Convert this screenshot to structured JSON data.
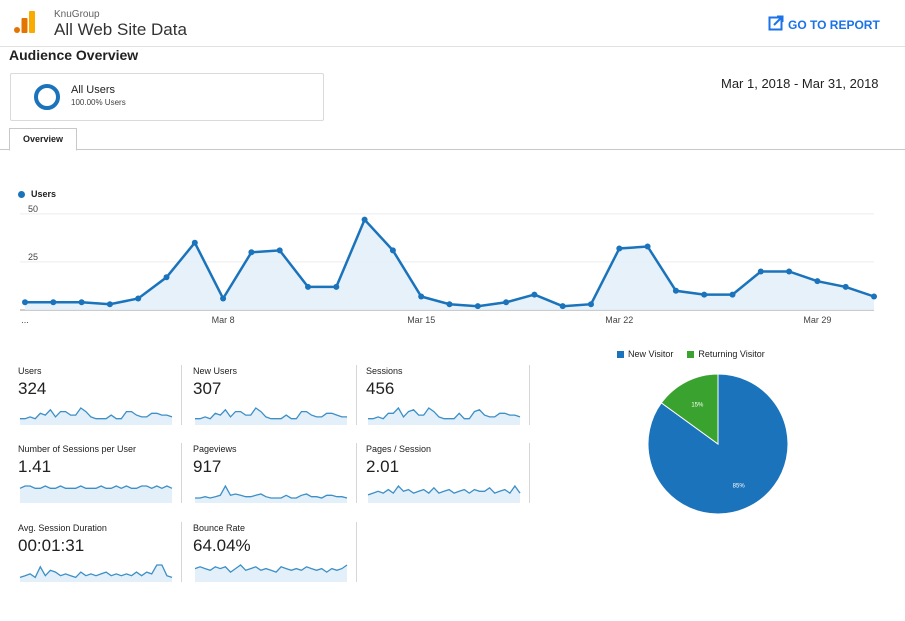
{
  "header": {
    "org": "KnuGroup",
    "property": "All Web Site Data",
    "report_link": "GO TO REPORT"
  },
  "page_title": "Audience Overview",
  "segment": {
    "name": "All Users",
    "percent": "100.00% Users"
  },
  "date_range": "Mar 1, 2018 - Mar 31, 2018",
  "tabs": [
    {
      "label": "Overview"
    }
  ],
  "colors": {
    "accent": "#1a73bb",
    "green": "#3aa32f",
    "link": "#1a73e8"
  },
  "chart_data": [
    {
      "type": "line",
      "legend": [
        "Users"
      ],
      "series": [
        {
          "name": "Users",
          "x": [
            "Mar 1",
            "Mar 2",
            "Mar 3",
            "Mar 4",
            "Mar 5",
            "Mar 6",
            "Mar 7",
            "Mar 8",
            "Mar 9",
            "Mar 10",
            "Mar 11",
            "Mar 12",
            "Mar 13",
            "Mar 14",
            "Mar 15",
            "Mar 16",
            "Mar 17",
            "Mar 18",
            "Mar 19",
            "Mar 20",
            "Mar 21",
            "Mar 22",
            "Mar 23",
            "Mar 24",
            "Mar 25",
            "Mar 26",
            "Mar 27",
            "Mar 28",
            "Mar 29",
            "Mar 30",
            "Mar 31"
          ],
          "values": [
            4,
            4,
            4,
            3,
            6,
            17,
            35,
            6,
            30,
            31,
            12,
            12,
            47,
            31,
            7,
            3,
            2,
            4,
            8,
            2,
            3,
            32,
            33,
            10,
            8,
            8,
            20,
            20,
            15,
            12,
            7
          ]
        }
      ],
      "y_ticks": [
        "50",
        "25"
      ],
      "ylim": [
        0,
        52
      ],
      "x_tick_labels": [
        "...",
        "Mar 8",
        "Mar 15",
        "Mar 22",
        "Mar 29"
      ],
      "grid": true
    },
    {
      "type": "pie",
      "legend": [
        "New Visitor",
        "Returning Visitor"
      ],
      "slices": [
        {
          "name": "New Visitor",
          "value": 85,
          "label": "85%",
          "color": "#1a73bb"
        },
        {
          "name": "Returning Visitor",
          "value": 15,
          "label": "15%",
          "color": "#3aa32f"
        }
      ]
    }
  ],
  "metrics": [
    {
      "label": "Users",
      "value": "324",
      "spark": [
        3,
        3,
        4,
        3,
        6,
        5,
        8,
        4,
        7,
        7,
        5,
        5,
        9,
        7,
        4,
        3,
        3,
        3,
        5,
        3,
        3,
        7,
        7,
        5,
        4,
        4,
        6,
        6,
        5,
        5,
        4
      ]
    },
    {
      "label": "New Users",
      "value": "307",
      "spark": [
        3,
        3,
        4,
        3,
        6,
        5,
        8,
        4,
        7,
        7,
        5,
        5,
        9,
        7,
        4,
        3,
        3,
        3,
        5,
        3,
        3,
        7,
        7,
        5,
        4,
        4,
        6,
        6,
        5,
        4,
        4
      ]
    },
    {
      "label": "Sessions",
      "value": "456",
      "spark": [
        3,
        3,
        4,
        3,
        6,
        6,
        9,
        4,
        7,
        8,
        5,
        5,
        9,
        7,
        4,
        3,
        3,
        3,
        6,
        3,
        3,
        7,
        8,
        5,
        4,
        4,
        6,
        6,
        5,
        5,
        4
      ]
    },
    {
      "label": "Number of Sessions per User",
      "value": "1.41",
      "spark": [
        6,
        7,
        7,
        6,
        6,
        7,
        6,
        6,
        7,
        6,
        6,
        6,
        7,
        6,
        6,
        6,
        7,
        6,
        6,
        7,
        6,
        7,
        6,
        6,
        7,
        7,
        6,
        7,
        6,
        7,
        6
      ]
    },
    {
      "label": "Pageviews",
      "value": "917",
      "spark": [
        3,
        3,
        4,
        3,
        4,
        5,
        12,
        5,
        6,
        5,
        4,
        4,
        5,
        6,
        4,
        3,
        3,
        3,
        5,
        3,
        3,
        5,
        6,
        4,
        4,
        3,
        5,
        5,
        4,
        4,
        3
      ]
    },
    {
      "label": "Pages / Session",
      "value": "2.01",
      "spark": [
        4,
        5,
        6,
        5,
        7,
        5,
        9,
        6,
        7,
        5,
        6,
        7,
        5,
        8,
        5,
        6,
        7,
        5,
        6,
        7,
        5,
        7,
        6,
        6,
        8,
        5,
        6,
        7,
        5,
        9,
        5
      ]
    },
    {
      "label": "Avg. Session Duration",
      "value": "00:01:31",
      "spark": [
        2,
        3,
        4,
        2,
        8,
        3,
        6,
        5,
        3,
        4,
        3,
        2,
        5,
        3,
        4,
        3,
        4,
        5,
        3,
        4,
        3,
        4,
        3,
        5,
        3,
        5,
        4,
        9,
        9,
        3,
        2
      ]
    },
    {
      "label": "Bounce Rate",
      "value": "64.04%",
      "spark": [
        7,
        8,
        7,
        6,
        8,
        7,
        8,
        5,
        7,
        9,
        6,
        7,
        8,
        6,
        7,
        6,
        5,
        8,
        7,
        6,
        7,
        6,
        8,
        7,
        6,
        7,
        5,
        7,
        6,
        7,
        9
      ]
    }
  ]
}
